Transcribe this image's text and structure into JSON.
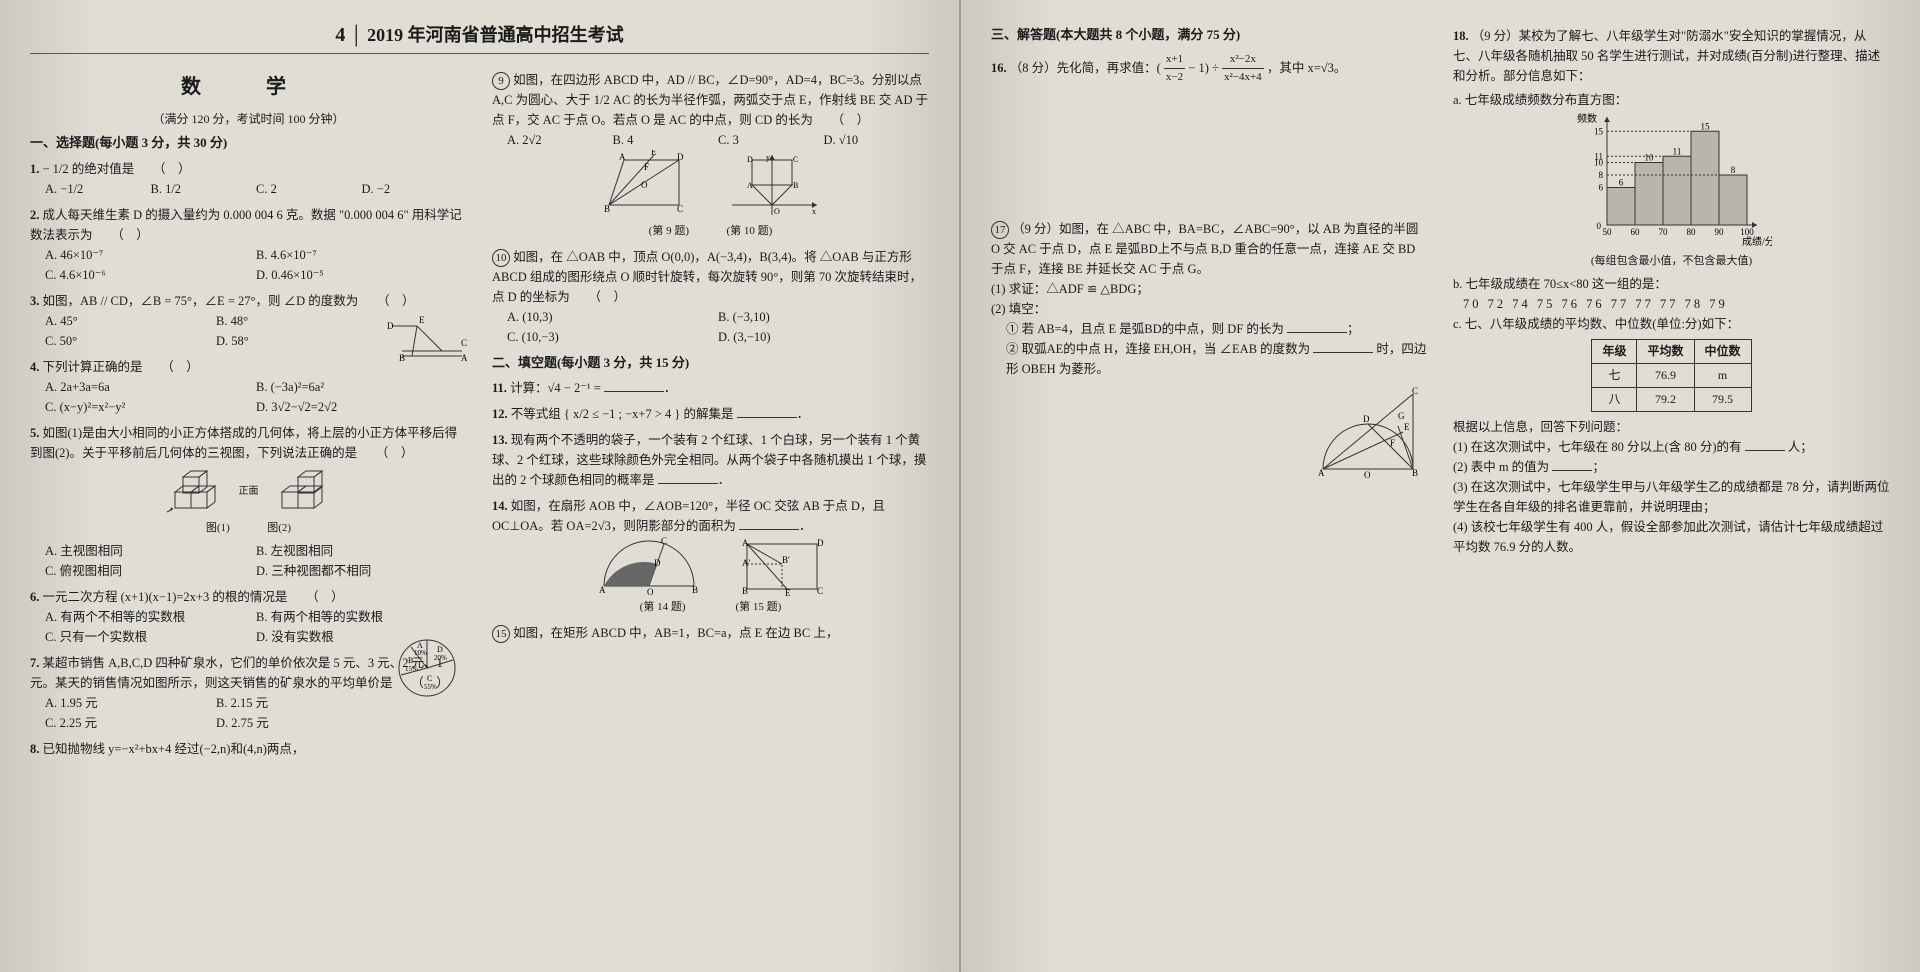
{
  "header": {
    "page_num": "4",
    "title": "2019 年河南省普通高中招生考试",
    "subject": "数 学",
    "full_score_info": "（满分 120 分，考试时间 100 分钟）"
  },
  "sections": {
    "s1": "一、选择题(每小题 3 分，共 30 分)",
    "s2": "二、填空题(每小题 3 分，共 15 分)",
    "s3": "三、解答题(本大题共 8 个小题，满分 75 分)"
  },
  "q1": {
    "stem": "− 1/2 的绝对值是",
    "a": "A. −1/2",
    "b": "B. 1/2",
    "c": "C. 2",
    "d": "D. −2"
  },
  "q2": {
    "stem": "成人每天维生素 D 的摄入量约为 0.000 004 6 克。数据 \"0.000 004 6\" 用科学记数法表示为",
    "a": "A. 46×10⁻⁷",
    "b": "B. 4.6×10⁻⁷",
    "c": "C. 4.6×10⁻⁶",
    "d": "D. 0.46×10⁻⁵"
  },
  "q3": {
    "stem": "如图，AB // CD，∠B = 75°，∠E = 27°，则 ∠D 的度数为",
    "a": "A. 45°",
    "b": "B. 48°",
    "c": "C. 50°",
    "d": "D. 58°"
  },
  "q4": {
    "stem": "下列计算正确的是",
    "a": "A. 2a+3a=6a",
    "b": "B. (−3a)²=6a²",
    "c": "C. (x−y)²=x²−y²",
    "d": "D. 3√2−√2=2√2"
  },
  "q5": {
    "stem": "如图(1)是由大小相同的小正方体搭成的几何体，将上层的小正方体平移后得到图(2)。关于平移前后几何体的三视图，下列说法正确的是",
    "a": "A. 主视图相同",
    "b": "B. 左视图相同",
    "c": "C. 俯视图相同",
    "d": "D. 三种视图都不相同",
    "fig1": "图(1)",
    "fig2": "图(2)",
    "front": "正面"
  },
  "q6": {
    "stem": "一元二次方程 (x+1)(x−1)=2x+3 的根的情况是",
    "a": "A. 有两个不相等的实数根",
    "b": "B. 有两个相等的实数根",
    "c": "C. 只有一个实数根",
    "d": "D. 没有实数根"
  },
  "q7": {
    "stem": "某超市销售 A,B,C,D 四种矿泉水，它们的单价依次是 5 元、3 元、2 元、1 元。某天的销售情况如图所示，则这天销售的矿泉水的平均单价是",
    "a": "A. 1.95 元",
    "b": "B. 2.15 元",
    "c": "C. 2.25 元",
    "d": "D. 2.75 元",
    "pie": {
      "labels": [
        "B 15%",
        "A 10%",
        "D 20%",
        "C 55%"
      ],
      "colors": [
        "#d0cdc4",
        "#bfbcb3",
        "#c7c4bb",
        "#b0ada4"
      ]
    }
  },
  "q8": {
    "stem": "已知抛物线 y=−x²+bx+4 经过(−2,n)和(4,n)两点，"
  },
  "q9": {
    "stem": "如图，在四边形 ABCD 中，AD // BC，∠D=90°，AD=4，BC=3。分别以点 A,C 为圆心、大于 1/2 AC 的长为半径作弧，两弧交于点 E，作射线 BE 交 AD 于点 F，交 AC 于点 O。若点 O 是 AC 的中点，则 CD 的长为",
    "a": "A. 2√2",
    "b": "B. 4",
    "c": "C. 3",
    "d": "D. √10",
    "fig": "(第 9 题)"
  },
  "q10": {
    "stem": "如图，在 △OAB 中，顶点 O(0,0)，A(−3,4)，B(3,4)。将 △OAB 与正方形 ABCD 组成的图形绕点 O 顺时针旋转，每次旋转 90°，则第 70 次旋转结束时，点 D 的坐标为",
    "a": "A. (10,3)",
    "b": "B. (−3,10)",
    "c": "C. (10,−3)",
    "d": "D. (3,−10)",
    "fig": "(第 10 题)"
  },
  "q11": {
    "stem": "计算：√4 − 2⁻¹ ="
  },
  "q12": {
    "stem": "不等式组 { x/2 ≤ −1 ; −x+7 > 4 } 的解集是"
  },
  "q13": {
    "stem": "现有两个不透明的袋子，一个装有 2 个红球、1 个白球，另一个装有 1 个黄球、2 个红球，这些球除颜色外完全相同。从两个袋子中各随机摸出 1 个球，摸出的 2 个球颜色相同的概率是"
  },
  "q14": {
    "stem": "如图，在扇形 AOB 中，∠AOB=120°，半径 OC 交弦 AB 于点 D，且 OC⊥OA。若 OA=2√3，则阴影部分的面积为",
    "fig": "(第 14 题)"
  },
  "q15": {
    "stem": "如图，在矩形 ABCD 中，AB=1，BC=a，点 E 在边 BC 上，",
    "fig": "(第 15 题)"
  },
  "q16": {
    "stem": "（8 分）先化简，再求值：(",
    "mid": " − 1) ÷ ",
    "tail": "，其中 x=√3。",
    "frac1n": "x+1",
    "frac1d": "x−2",
    "frac2n": "x²−2x",
    "frac2d": "x²−4x+4"
  },
  "q17": {
    "num": "17",
    "stem": "（9 分）如图，在 △ABC 中，BA=BC，∠ABC=90°，以 AB 为直径的半圆 O 交 AC 于点 D，点 E 是弧BD上不与点 B,D 重合的任意一点，连接 AE 交 BD 于点 F，连接 BE 并延长交 AC 于点 G。",
    "p1": "(1) 求证：△ADF ≌ △BDG；",
    "p2": "(2) 填空：",
    "p2a": "① 若 AB=4，且点 E 是弧BD的中点，则 DF 的长为",
    "p2b": "② 取弧AE的中点 H，连接 EH,OH，当 ∠EAB 的度数为",
    "p2c": "时，四边形 OBEH 为菱形。"
  },
  "q18": {
    "stem": "（9 分）某校为了解七、八年级学生对\"防溺水\"安全知识的掌握情况，从七、八年级各随机抽取 50 名学生进行测试，并对成绩(百分制)进行整理、描述和分析。部分信息如下：",
    "pa": "a. 七年级成绩频数分布直方图：",
    "pb": "b. 七年级成绩在 70≤x<80 这一组的是：",
    "pb_data": "70  72  74  75  76  76  77  77  77  78  79",
    "pc": "c. 七、八年级成绩的平均数、中位数(单位:分)如下：",
    "table": {
      "h1": "年级",
      "h2": "平均数",
      "h3": "中位数",
      "r1": [
        "七",
        "76.9",
        "m"
      ],
      "r2": [
        "八",
        "79.2",
        "79.5"
      ]
    },
    "prompt": "根据以上信息，回答下列问题：",
    "p1": "(1) 在这次测试中，七年级在 80 分以上(含 80 分)的有",
    "p1t": "人；",
    "p2": "(2) 表中 m 的值为",
    "p3": "(3) 在这次测试中，七年级学生甲与八年级学生乙的成绩都是 78 分，请判断两位学生在各自年级的排名谁更靠前，并说明理由；",
    "p4": "(4) 该校七年级学生有 400 人，假设全部参加此次测试，请估计七年级成绩超过平均数 76.9 分的人数。",
    "hist": {
      "ylabel": "频数",
      "xlabel": "成绩/分",
      "note": "(每组包含最小值，不包含最大值)",
      "bins": [
        "50",
        "60",
        "70",
        "80",
        "90",
        "100"
      ],
      "values": [
        6,
        10,
        11,
        15,
        8
      ],
      "bar_color": "#b8b5ac",
      "y_max": 16
    }
  },
  "colors": {
    "page_bg": "#e0ddd5",
    "text": "#1a1a1a"
  }
}
